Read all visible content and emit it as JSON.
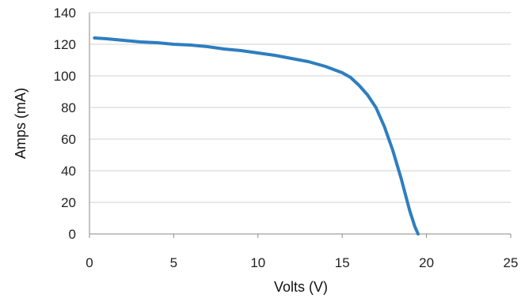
{
  "chart_data": {
    "type": "line",
    "title": "",
    "xlabel": "Volts (V)",
    "ylabel": "Amps (mA)",
    "xlim": [
      0,
      25
    ],
    "ylim": [
      0,
      140
    ],
    "xticks": [
      0,
      5,
      10,
      15,
      20,
      25
    ],
    "yticks": [
      0,
      20,
      40,
      60,
      80,
      100,
      120,
      140
    ],
    "grid": "horizontal",
    "legend": "none",
    "series": [
      {
        "color": "#2e7ebf",
        "x": [
          0.3,
          1,
          2,
          3,
          4,
          5,
          6,
          7,
          8,
          9,
          10,
          11,
          12,
          13,
          14,
          15,
          15.5,
          16,
          16.5,
          17,
          17.5,
          18,
          18.5,
          19,
          19.3,
          19.5
        ],
        "y": [
          124,
          123.5,
          122.5,
          121.5,
          121,
          120,
          119.5,
          118.5,
          117,
          116,
          114.5,
          113,
          111,
          109,
          106,
          102,
          99,
          94,
          88,
          80,
          68,
          53,
          35,
          15,
          5,
          0
        ]
      }
    ]
  }
}
